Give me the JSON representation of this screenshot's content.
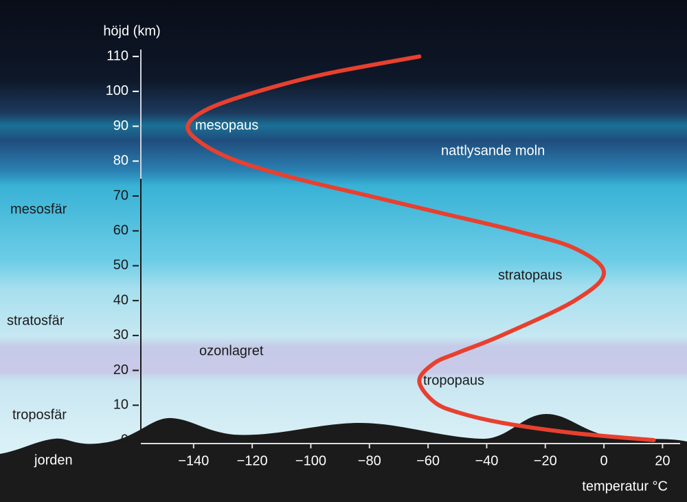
{
  "chart_data": {
    "type": "line",
    "ylabel": "höjd (km)",
    "xlabel": "temperatur °C",
    "layers": [
      "mesosfär",
      "stratosfär",
      "troposfär",
      "jorden"
    ],
    "annotations": [
      "mesopaus",
      "nattlysande moln",
      "stratopaus",
      "ozonlagret",
      "tropopaus"
    ],
    "series": [
      {
        "color": "#e8402f",
        "x": [
          17,
          -10,
          -35,
          -50,
          -58,
          -63,
          -58,
          -50,
          -35,
          -10,
          0,
          -10,
          -30,
          -55,
          -80,
          -105,
          -125,
          -137,
          -142,
          -135,
          -118,
          -95,
          -63
        ],
        "values": [
          0,
          2,
          5,
          8,
          11,
          17,
          22,
          25,
          30,
          40,
          48,
          55,
          60,
          65,
          70,
          75,
          80,
          85,
          90,
          95,
          100,
          105,
          110
        ]
      }
    ],
    "xlim": [
      -158,
      26
    ],
    "xticks": [
      {
        "value": -140,
        "label": "−140"
      },
      {
        "value": -120,
        "label": "−120"
      },
      {
        "value": -100,
        "label": "−100"
      },
      {
        "value": -80,
        "label": "−80"
      },
      {
        "value": -60,
        "label": "−60"
      },
      {
        "value": -40,
        "label": "−40"
      },
      {
        "value": -20,
        "label": "−20"
      },
      0,
      20
    ],
    "ylim": [
      0,
      112
    ],
    "yticks": [
      0,
      10,
      20,
      30,
      40,
      50,
      60,
      70,
      80,
      90,
      100,
      110
    ]
  }
}
